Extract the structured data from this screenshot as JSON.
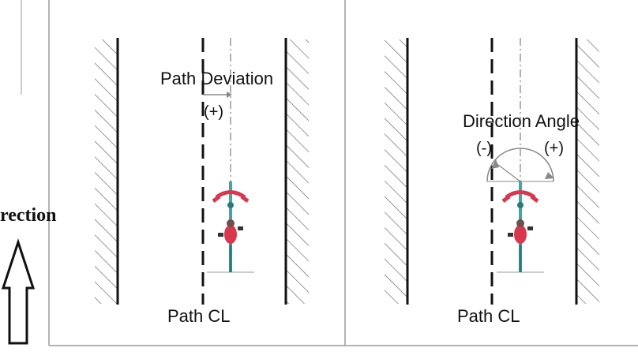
{
  "left_panel": {
    "deviation_label": "Path Deviation",
    "deviation_sign": "(+)",
    "centerline_label": "Path CL"
  },
  "right_panel": {
    "angle_label": "Direction Angle",
    "negative_sign": "(-)",
    "positive_sign": "(+)",
    "centerline_label": "Path CL"
  },
  "direction_label": "rection",
  "colors": {
    "line": "#111111",
    "centerline": "#888888",
    "bike_frame": "#4aa3a0",
    "bike_rider": "#d8374e",
    "panel_border": "#9a9a9a"
  }
}
